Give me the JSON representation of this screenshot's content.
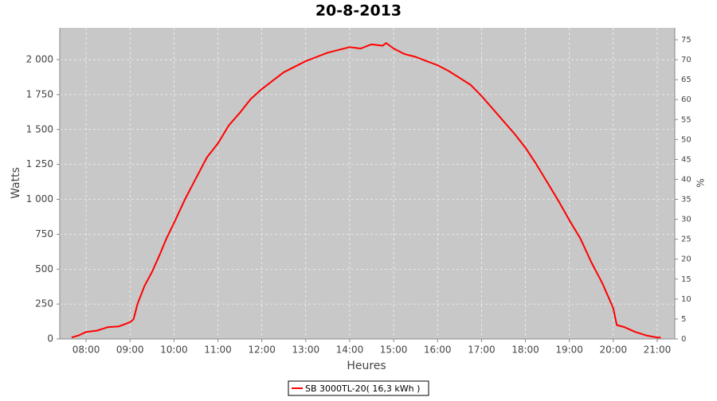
{
  "chart_data": {
    "type": "line",
    "title": "20-8-2013",
    "x_label": "Heures",
    "y_label": "Watts",
    "y2_label": "%",
    "x": [
      7.67,
      7.83,
      8,
      8.25,
      8.5,
      8.75,
      9,
      9.08,
      9.17,
      9.33,
      9.5,
      9.67,
      9.83,
      10,
      10.25,
      10.5,
      10.75,
      11,
      11.25,
      11.5,
      11.75,
      12,
      12.25,
      12.5,
      12.75,
      13,
      13.25,
      13.5,
      13.75,
      14,
      14.25,
      14.5,
      14.75,
      14.83,
      15,
      15.25,
      15.5,
      15.75,
      16,
      16.25,
      16.5,
      16.75,
      17,
      17.25,
      17.5,
      17.75,
      18,
      18.25,
      18.5,
      18.75,
      19,
      19.25,
      19.5,
      19.75,
      20,
      20.08,
      20.25,
      20.5,
      20.75,
      21,
      21.08
    ],
    "series": [
      {
        "name": "SB 3000TL-20( 16,3 kWh )",
        "color": "#ff0000",
        "values": [
          10,
          25,
          50,
          60,
          85,
          90,
          120,
          140,
          250,
          380,
          480,
          600,
          720,
          830,
          1000,
          1150,
          1300,
          1400,
          1530,
          1620,
          1720,
          1790,
          1850,
          1910,
          1950,
          1990,
          2020,
          2050,
          2070,
          2090,
          2080,
          2110,
          2100,
          2120,
          2080,
          2040,
          2020,
          1990,
          1960,
          1920,
          1870,
          1820,
          1740,
          1650,
          1560,
          1470,
          1370,
          1250,
          1120,
          990,
          850,
          720,
          550,
          400,
          220,
          100,
          85,
          50,
          25,
          10,
          10
        ]
      }
    ],
    "xlim": [
      7.4,
      21.4
    ],
    "xticks": [
      {
        "value": 8,
        "label": "08:00"
      },
      {
        "value": 9,
        "label": "09:00"
      },
      {
        "value": 10,
        "label": "10:00"
      },
      {
        "value": 11,
        "label": "11:00"
      },
      {
        "value": 12,
        "label": "12:00"
      },
      {
        "value": 13,
        "label": "13:00"
      },
      {
        "value": 14,
        "label": "14:00"
      },
      {
        "value": 15,
        "label": "15:00"
      },
      {
        "value": 16,
        "label": "16:00"
      },
      {
        "value": 17,
        "label": "17:00"
      },
      {
        "value": 18,
        "label": "18:00"
      },
      {
        "value": 19,
        "label": "19:00"
      },
      {
        "value": 20,
        "label": "20:00"
      },
      {
        "value": 21,
        "label": "21:00"
      }
    ],
    "ylim": [
      0,
      2228
    ],
    "yticks": [
      0,
      250,
      500,
      750,
      {
        "value": 1000,
        "label": "1 000"
      },
      {
        "value": 1250,
        "label": "1 250"
      },
      {
        "value": 1500,
        "label": "1 500"
      },
      {
        "value": 1750,
        "label": "1 750"
      },
      {
        "value": 2000,
        "label": "2 000"
      }
    ],
    "y2lim": [
      0,
      78
    ],
    "y2ticks": [
      0,
      5,
      10,
      15,
      20,
      25,
      30,
      35,
      40,
      45,
      50,
      55,
      60,
      65,
      70,
      75
    ],
    "grid": true
  }
}
